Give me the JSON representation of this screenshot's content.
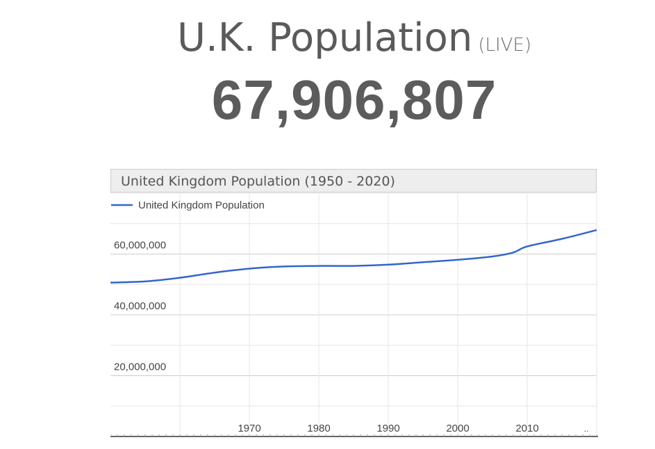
{
  "header": {
    "title": "U.K. Population",
    "live_label": "(LIVE)",
    "counter": "67,906,807"
  },
  "chart_data": {
    "type": "line",
    "title": "United Kingdom Population (1950 - 2020)",
    "xlabel": "",
    "ylabel": "",
    "xlim": [
      1950,
      2020
    ],
    "ylim": [
      0,
      80000000
    ],
    "x_ticks": [
      1970,
      1980,
      1990,
      2000,
      2010
    ],
    "x_tick_labels": [
      "1970",
      "1980",
      "1990",
      "2000",
      "2010"
    ],
    "x_end_label": "..",
    "y_ticks": [
      20000000,
      40000000,
      60000000
    ],
    "y_tick_labels": [
      "20,000,000",
      "40,000,000",
      "60,000,000"
    ],
    "grid": true,
    "legend": "top-left",
    "colors": {
      "series": "#3366cc",
      "grid": "#e6e6e6",
      "major_grid": "#cccccc",
      "axis": "#333333"
    },
    "series": [
      {
        "name": "United Kingdom Population",
        "x": [
          1950,
          1955,
          1960,
          1965,
          1970,
          1975,
          1980,
          1985,
          1990,
          1995,
          2000,
          2005,
          2008,
          2010,
          2015,
          2020
        ],
        "y": [
          50600000,
          51000000,
          52200000,
          53900000,
          55200000,
          55900000,
          56100000,
          56100000,
          56500000,
          57300000,
          58100000,
          59200000,
          60500000,
          62500000,
          65000000,
          67900000
        ]
      }
    ]
  }
}
